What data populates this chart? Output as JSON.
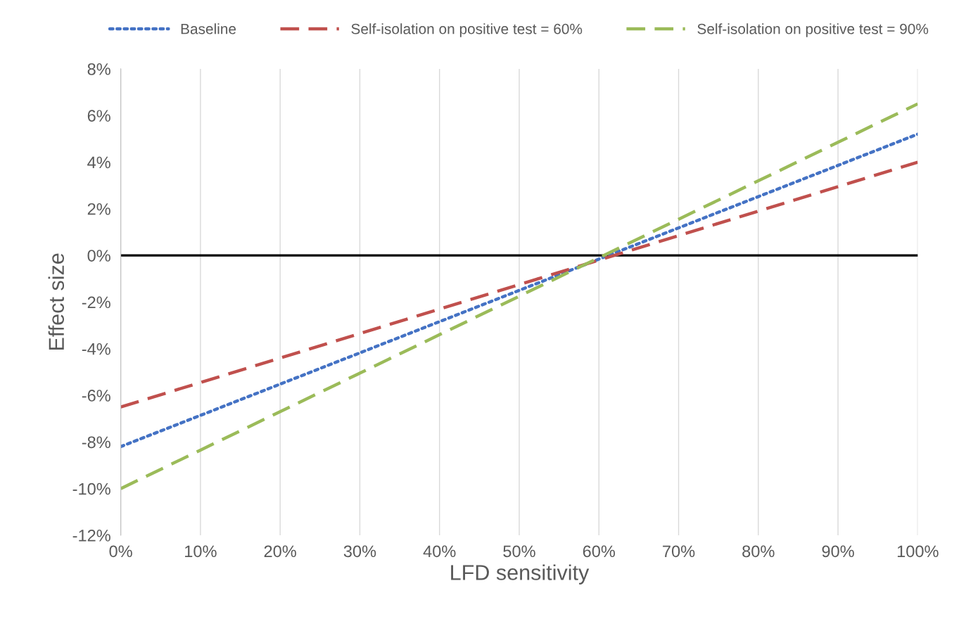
{
  "chart_data": {
    "type": "line",
    "xlabel": "LFD sensitivity",
    "ylabel": "Effect size",
    "x": [
      0,
      10,
      20,
      30,
      40,
      50,
      60,
      70,
      80,
      90,
      100
    ],
    "series": [
      {
        "name": "Baseline",
        "color": "#4472c4",
        "line_style": "dotted",
        "values": [
          -8.2,
          -6.86,
          -5.52,
          -4.18,
          -2.84,
          -1.5,
          -0.16,
          1.18,
          2.52,
          3.86,
          5.2
        ]
      },
      {
        "name": "Self-isolation on positive test = 60%",
        "color": "#c0504d",
        "line_style": "dashed",
        "values": [
          -6.5,
          -5.45,
          -4.4,
          -3.35,
          -2.3,
          -1.25,
          -0.2,
          0.85,
          1.9,
          2.95,
          4.0
        ]
      },
      {
        "name": "Self-isolation on positive test = 90%",
        "color": "#9bbb59",
        "line_style": "dashed",
        "values": [
          -10.0,
          -8.35,
          -6.7,
          -5.05,
          -3.4,
          -1.75,
          -0.1,
          1.55,
          3.2,
          4.85,
          6.5
        ]
      }
    ],
    "xlim": [
      0,
      100
    ],
    "xticks": [
      {
        "value": 0,
        "label": "0%"
      },
      {
        "value": 10,
        "label": "10%"
      },
      {
        "value": 20,
        "label": "20%"
      },
      {
        "value": 30,
        "label": "30%"
      },
      {
        "value": 40,
        "label": "40%"
      },
      {
        "value": 50,
        "label": "50%"
      },
      {
        "value": 60,
        "label": "60%"
      },
      {
        "value": 70,
        "label": "70%"
      },
      {
        "value": 80,
        "label": "80%"
      },
      {
        "value": 90,
        "label": "90%"
      },
      {
        "value": 100,
        "label": "100%"
      }
    ],
    "ylim": [
      -12,
      8
    ],
    "yticks": [
      {
        "value": -12,
        "label": "-12%"
      },
      {
        "value": -10,
        "label": "-10%"
      },
      {
        "value": -8,
        "label": "-8%"
      },
      {
        "value": -6,
        "label": "-6%"
      },
      {
        "value": -4,
        "label": "-4%"
      },
      {
        "value": -2,
        "label": "-2%"
      },
      {
        "value": 0,
        "label": "0%"
      },
      {
        "value": 2,
        "label": "2%"
      },
      {
        "value": 4,
        "label": "4%"
      },
      {
        "value": 6,
        "label": "6%"
      },
      {
        "value": 8,
        "label": "8%"
      }
    ],
    "ref_lines": [
      {
        "axis": "y",
        "value": 0,
        "color": "#000000",
        "line_style": "solid"
      }
    ],
    "grid": "x",
    "legend": "top",
    "marker": "none"
  }
}
